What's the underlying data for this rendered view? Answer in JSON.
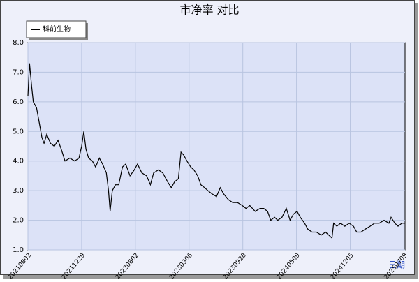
{
  "chart_data": {
    "type": "line",
    "title": "市净率  对比",
    "x_label": "日期",
    "x": [
      0,
      3,
      7,
      10,
      16,
      21,
      26,
      30,
      35,
      42,
      49,
      56,
      62,
      69,
      78,
      87,
      95,
      100,
      104,
      108,
      113,
      120,
      126,
      133,
      139,
      146,
      150,
      153,
      157,
      163,
      169,
      176,
      182,
      190,
      198,
      204,
      212,
      221,
      228,
      234,
      243,
      251,
      260,
      267,
      273,
      280,
      285,
      290,
      296,
      303,
      309,
      316,
      322,
      329,
      335,
      342,
      351,
      358,
      364,
      373,
      381,
      390,
      399,
      406,
      413,
      423,
      432,
      439,
      446,
      452,
      459,
      465,
      473,
      481,
      488,
      494,
      501,
      507,
      515,
      521,
      529,
      537,
      546,
      554,
      560,
      566,
      569,
      575,
      582,
      590,
      598,
      606,
      612,
      620,
      628,
      637,
      645,
      654,
      663,
      672,
      676,
      683,
      689,
      696,
      702
    ],
    "series": [
      {
        "name": "科前生物",
        "color": "#000000",
        "values": [
          6.2,
          7.3,
          6.5,
          6.0,
          5.8,
          5.3,
          4.8,
          4.6,
          4.9,
          4.6,
          4.5,
          4.7,
          4.4,
          4.0,
          4.1,
          4.0,
          4.1,
          4.5,
          5.0,
          4.4,
          4.1,
          4.0,
          3.8,
          4.1,
          3.9,
          3.6,
          3.0,
          2.3,
          3.0,
          3.2,
          3.2,
          3.8,
          3.9,
          3.5,
          3.7,
          3.9,
          3.6,
          3.5,
          3.2,
          3.6,
          3.7,
          3.6,
          3.3,
          3.1,
          3.3,
          3.4,
          4.3,
          4.2,
          4.0,
          3.8,
          3.7,
          3.5,
          3.2,
          3.1,
          3.0,
          2.9,
          2.8,
          3.1,
          2.9,
          2.7,
          2.6,
          2.6,
          2.5,
          2.4,
          2.5,
          2.3,
          2.4,
          2.4,
          2.3,
          2.0,
          2.1,
          2.0,
          2.1,
          2.4,
          2.0,
          2.2,
          2.3,
          2.1,
          1.9,
          1.7,
          1.6,
          1.6,
          1.5,
          1.6,
          1.5,
          1.4,
          1.9,
          1.8,
          1.9,
          1.8,
          1.9,
          1.8,
          1.6,
          1.6,
          1.7,
          1.8,
          1.9,
          1.9,
          2.0,
          1.9,
          2.1,
          1.9,
          1.8,
          1.9,
          1.9
        ]
      }
    ],
    "xlim": [
      0,
      702
    ],
    "xticks": [
      {
        "value": 0,
        "label": "20210802"
      },
      {
        "value": 100,
        "label": "20211229"
      },
      {
        "value": 200,
        "label": "20220602"
      },
      {
        "value": 300,
        "label": "20230306"
      },
      {
        "value": 400,
        "label": "20230928"
      },
      {
        "value": 500,
        "label": "20240509"
      },
      {
        "value": 600,
        "label": "20241205"
      },
      {
        "value": 700,
        "label": "20250709"
      }
    ],
    "ylim": [
      1,
      8
    ],
    "yticks": [
      {
        "value": 1,
        "label": "1.0"
      },
      {
        "value": 2,
        "label": "2.0"
      },
      {
        "value": 3,
        "label": "3.0"
      },
      {
        "value": 4,
        "label": "4.0"
      },
      {
        "value": 5,
        "label": "5.0"
      },
      {
        "value": 6,
        "label": "6.0"
      },
      {
        "value": 7,
        "label": "7.0"
      },
      {
        "value": 8,
        "label": "8.0"
      }
    ],
    "grid": true
  }
}
